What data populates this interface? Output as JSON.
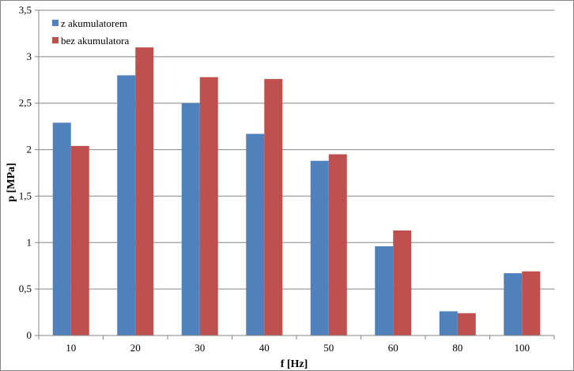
{
  "chart_data": {
    "type": "bar",
    "categories": [
      "10",
      "20",
      "30",
      "40",
      "50",
      "60",
      "80",
      "100"
    ],
    "series": [
      {
        "name": "z akumulatorem",
        "color": "#4F81BD",
        "values": [
          2.29,
          2.8,
          2.5,
          2.17,
          1.88,
          0.96,
          0.26,
          0.67
        ]
      },
      {
        "name": "bez akumulatora",
        "color": "#C0504D",
        "values": [
          2.04,
          3.1,
          2.78,
          2.76,
          1.95,
          1.13,
          0.24,
          0.69
        ]
      }
    ],
    "xlabel": "f [Hz]",
    "ylabel": "p [MPa]",
    "ylim": [
      0,
      3.5
    ],
    "yticks": [
      0,
      0.5,
      1,
      1.5,
      2,
      2.5,
      3,
      3.5
    ],
    "ytick_labels": [
      "0",
      "0,5",
      "1",
      "1,5",
      "2",
      "2,5",
      "3",
      "3,5"
    ],
    "grid": true,
    "legend_position": "top-left"
  }
}
